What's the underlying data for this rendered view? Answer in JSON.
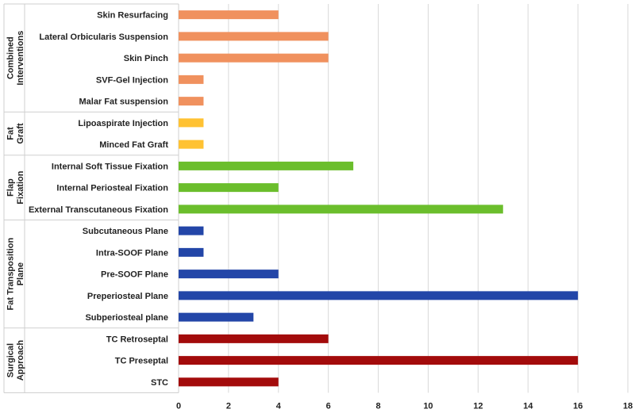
{
  "chart_data": {
    "type": "bar",
    "orientation": "horizontal",
    "title": "",
    "xlabel": "",
    "ylabel": "",
    "xlim": [
      0,
      18
    ],
    "xticks": [
      0,
      2,
      4,
      6,
      8,
      10,
      12,
      14,
      16,
      18
    ],
    "grid": true,
    "legend": "none",
    "groups": [
      {
        "name": "Combined Interventions",
        "color": "#F0915E",
        "categories": [
          "Skin Resurfacing",
          "Lateral Orbicularis Suspension",
          "Skin Pinch",
          "SVF-Gel Injection",
          "Malar Fat suspension"
        ],
        "values": [
          4,
          6,
          6,
          1,
          1
        ]
      },
      {
        "name": "Fat Graft",
        "color": "#FFC233",
        "categories": [
          "Lipoaspirate Injection",
          "Minced Fat Graft"
        ],
        "values": [
          1,
          1
        ]
      },
      {
        "name": "Flap Fixation",
        "color": "#6BBE2C",
        "categories": [
          "Internal Soft Tissue Fixation",
          "Internal Periosteal Fixation",
          "External Transcutaneous Fixation"
        ],
        "values": [
          7,
          4,
          13
        ]
      },
      {
        "name": "Fat Transposition Plane",
        "color": "#2346A8",
        "categories": [
          "Subcutaneous Plane",
          "Intra-SOOF Plane",
          "Pre-SOOF Plane",
          "Preperiosteal Plane",
          "Subperiosteal plane"
        ],
        "values": [
          1,
          1,
          4,
          16,
          3
        ]
      },
      {
        "name": "Surgical Approach",
        "color": "#A30B0B",
        "categories": [
          "TC Retroseptal",
          "TC Preseptal",
          "STC"
        ],
        "values": [
          6,
          16,
          4
        ]
      }
    ]
  }
}
